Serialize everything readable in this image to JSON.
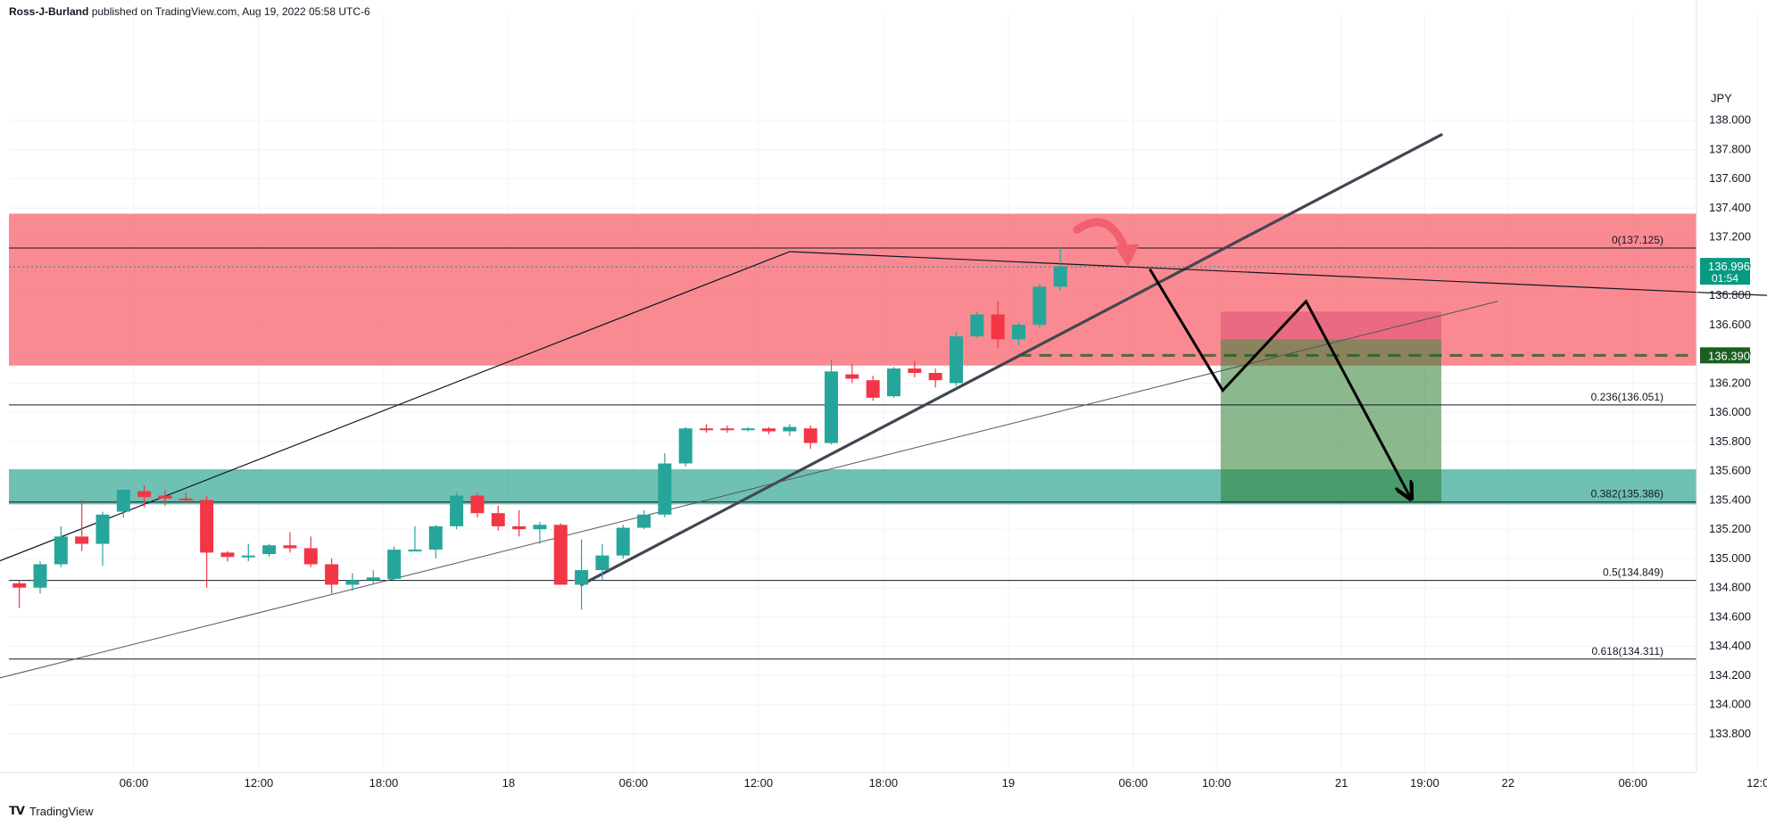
{
  "header": {
    "author": "Ross-J-Burland",
    "published_text": "published on TradingView.com, Aug 19, 2022 05:58 UTC-6"
  },
  "footer": {
    "brand": "TradingView",
    "logo_glyph": "𝗧𝗩"
  },
  "chart_data": {
    "type": "candlestick",
    "currency_label": "JPY",
    "y_ticks": [
      138.0,
      137.8,
      137.6,
      137.4,
      137.2,
      137.0,
      136.8,
      136.6,
      136.4,
      136.2,
      136.0,
      135.8,
      135.6,
      135.4,
      135.2,
      135.0,
      134.8,
      134.6,
      134.4,
      134.2,
      134.0,
      133.8
    ],
    "y_tick_labels": [
      "138.000",
      "137.800",
      "137.600",
      "137.400",
      "137.200",
      "137.000",
      "136.800",
      "136.600",
      "136.400",
      "136.200",
      "136.000",
      "135.800",
      "135.600",
      "135.400",
      "135.200",
      "135.000",
      "134.800",
      "134.600",
      "134.400",
      "134.200",
      "134.000",
      "133.800"
    ],
    "x_tick_labels": [
      {
        "label": "06:00",
        "hour": 6
      },
      {
        "label": "12:00",
        "hour": 12
      },
      {
        "label": "18:00",
        "hour": 18
      },
      {
        "label": "18",
        "hour": 24
      },
      {
        "label": "06:00",
        "hour": 30
      },
      {
        "label": "12:00",
        "hour": 36
      },
      {
        "label": "18:00",
        "hour": 42
      },
      {
        "label": "19",
        "hour": 48
      },
      {
        "label": "06:00",
        "hour": 54
      },
      {
        "label": "10:00",
        "hour": 58
      },
      {
        "label": "21",
        "hour": 64
      },
      {
        "label": "19:00",
        "hour": 68
      },
      {
        "label": "22",
        "hour": 72
      },
      {
        "label": "06:00",
        "hour": 78
      },
      {
        "label": "12:0",
        "hour": 84
      }
    ],
    "candles": [
      {
        "t": 0.5,
        "o": 134.83,
        "h": 134.85,
        "l": 134.66,
        "c": 134.8
      },
      {
        "t": 1.5,
        "o": 134.8,
        "h": 134.98,
        "l": 134.76,
        "c": 134.96
      },
      {
        "t": 2.5,
        "o": 134.96,
        "h": 135.22,
        "l": 134.94,
        "c": 135.15
      },
      {
        "t": 3.5,
        "o": 135.15,
        "h": 135.4,
        "l": 135.05,
        "c": 135.1
      },
      {
        "t": 4.5,
        "o": 135.1,
        "h": 135.32,
        "l": 134.95,
        "c": 135.3
      },
      {
        "t": 5.5,
        "o": 135.32,
        "h": 135.47,
        "l": 135.28,
        "c": 135.47
      },
      {
        "t": 6.5,
        "o": 135.46,
        "h": 135.5,
        "l": 135.35,
        "c": 135.42
      },
      {
        "t": 7.5,
        "o": 135.43,
        "h": 135.47,
        "l": 135.36,
        "c": 135.41
      },
      {
        "t": 8.5,
        "o": 135.41,
        "h": 135.45,
        "l": 135.38,
        "c": 135.4
      },
      {
        "t": 9.5,
        "o": 135.4,
        "h": 135.43,
        "l": 134.8,
        "c": 135.04
      },
      {
        "t": 10.5,
        "o": 135.04,
        "h": 135.05,
        "l": 134.98,
        "c": 135.01
      },
      {
        "t": 11.5,
        "o": 135.02,
        "h": 135.1,
        "l": 134.98,
        "c": 135.02
      },
      {
        "t": 12.5,
        "o": 135.03,
        "h": 135.1,
        "l": 135.01,
        "c": 135.09
      },
      {
        "t": 13.5,
        "o": 135.09,
        "h": 135.18,
        "l": 135.04,
        "c": 135.07
      },
      {
        "t": 14.5,
        "o": 135.07,
        "h": 135.15,
        "l": 134.94,
        "c": 134.96
      },
      {
        "t": 15.5,
        "o": 134.96,
        "h": 135.0,
        "l": 134.76,
        "c": 134.82
      },
      {
        "t": 16.5,
        "o": 134.82,
        "h": 134.9,
        "l": 134.78,
        "c": 134.85
      },
      {
        "t": 17.5,
        "o": 134.85,
        "h": 134.92,
        "l": 134.83,
        "c": 134.87
      },
      {
        "t": 18.5,
        "o": 134.86,
        "h": 135.08,
        "l": 134.85,
        "c": 135.06
      },
      {
        "t": 19.5,
        "o": 135.06,
        "h": 135.22,
        "l": 135.05,
        "c": 135.06
      },
      {
        "t": 20.5,
        "o": 135.06,
        "h": 135.23,
        "l": 135.0,
        "c": 135.22
      },
      {
        "t": 21.5,
        "o": 135.22,
        "h": 135.45,
        "l": 135.2,
        "c": 135.43
      },
      {
        "t": 22.5,
        "o": 135.43,
        "h": 135.45,
        "l": 135.28,
        "c": 135.31
      },
      {
        "t": 23.5,
        "o": 135.31,
        "h": 135.36,
        "l": 135.19,
        "c": 135.22
      },
      {
        "t": 24.5,
        "o": 135.22,
        "h": 135.33,
        "l": 135.15,
        "c": 135.2
      },
      {
        "t": 25.5,
        "o": 135.2,
        "h": 135.25,
        "l": 135.1,
        "c": 135.23
      },
      {
        "t": 26.5,
        "o": 135.23,
        "h": 135.24,
        "l": 134.82,
        "c": 134.82
      },
      {
        "t": 27.5,
        "o": 134.82,
        "h": 135.13,
        "l": 134.65,
        "c": 134.92
      },
      {
        "t": 28.5,
        "o": 134.92,
        "h": 135.1,
        "l": 134.85,
        "c": 135.02
      },
      {
        "t": 29.5,
        "o": 135.02,
        "h": 135.23,
        "l": 135.0,
        "c": 135.21
      },
      {
        "t": 30.5,
        "o": 135.21,
        "h": 135.33,
        "l": 135.2,
        "c": 135.3
      },
      {
        "t": 31.5,
        "o": 135.3,
        "h": 135.72,
        "l": 135.28,
        "c": 135.65
      },
      {
        "t": 32.5,
        "o": 135.65,
        "h": 135.9,
        "l": 135.63,
        "c": 135.89
      },
      {
        "t": 33.5,
        "o": 135.89,
        "h": 135.92,
        "l": 135.86,
        "c": 135.88
      },
      {
        "t": 34.5,
        "o": 135.89,
        "h": 135.91,
        "l": 135.86,
        "c": 135.88
      },
      {
        "t": 35.5,
        "o": 135.88,
        "h": 135.9,
        "l": 135.87,
        "c": 135.89
      },
      {
        "t": 36.5,
        "o": 135.89,
        "h": 135.9,
        "l": 135.85,
        "c": 135.87
      },
      {
        "t": 37.5,
        "o": 135.87,
        "h": 135.92,
        "l": 135.84,
        "c": 135.9
      },
      {
        "t": 38.5,
        "o": 135.89,
        "h": 135.91,
        "l": 135.75,
        "c": 135.79
      },
      {
        "t": 39.5,
        "o": 135.79,
        "h": 136.36,
        "l": 135.78,
        "c": 136.28
      },
      {
        "t": 40.5,
        "o": 136.26,
        "h": 136.33,
        "l": 136.2,
        "c": 136.23
      },
      {
        "t": 41.5,
        "o": 136.22,
        "h": 136.25,
        "l": 136.08,
        "c": 136.1
      },
      {
        "t": 42.5,
        "o": 136.11,
        "h": 136.31,
        "l": 136.1,
        "c": 136.3
      },
      {
        "t": 43.5,
        "o": 136.3,
        "h": 136.35,
        "l": 136.24,
        "c": 136.27
      },
      {
        "t": 44.5,
        "o": 136.27,
        "h": 136.3,
        "l": 136.17,
        "c": 136.22
      },
      {
        "t": 45.5,
        "o": 136.2,
        "h": 136.55,
        "l": 136.18,
        "c": 136.52
      },
      {
        "t": 46.5,
        "o": 136.52,
        "h": 136.69,
        "l": 136.51,
        "c": 136.67
      },
      {
        "t": 47.5,
        "o": 136.67,
        "h": 136.76,
        "l": 136.44,
        "c": 136.5
      },
      {
        "t": 48.5,
        "o": 136.5,
        "h": 136.62,
        "l": 136.46,
        "c": 136.6
      },
      {
        "t": 49.5,
        "o": 136.6,
        "h": 136.88,
        "l": 136.58,
        "c": 136.86
      },
      {
        "t": 50.5,
        "o": 136.86,
        "h": 137.13,
        "l": 136.83,
        "c": 137.0
      }
    ],
    "last_price": {
      "value": 136.996,
      "label": "136.996",
      "countdown": "01:54"
    },
    "entry_level": {
      "value": 136.39,
      "label": "136.390"
    },
    "fib_levels": [
      {
        "ratio_label": "0(137.125)",
        "value": 137.125
      },
      {
        "ratio_label": "0.236(136.051)",
        "value": 136.051
      },
      {
        "ratio_label": "0.382(135.386)",
        "value": 135.386
      },
      {
        "ratio_label": "0.5(134.849)",
        "value": 134.849
      },
      {
        "ratio_label": "0.618(134.311)",
        "value": 134.311
      }
    ],
    "zones": [
      {
        "name": "resistance",
        "from": 136.32,
        "to": 137.36,
        "color": "#f7525f",
        "opacity": 0.68
      },
      {
        "name": "support",
        "from": 135.37,
        "to": 135.61,
        "color": "#22a08a",
        "opacity": 0.65
      }
    ],
    "short_position": {
      "t_start": 58.2,
      "t_end": 68.8,
      "entry": 136.5,
      "stop": 136.69,
      "target": 135.38
    },
    "trendlines": [
      {
        "name": "major-uptrend",
        "t1": 27.5,
        "p1": 134.82,
        "t2": 68.8,
        "p2": 137.9,
        "width": 3.2,
        "color": "#434651"
      },
      {
        "name": "outer-channel-upper",
        "t1": -0.5,
        "p1": 134.98,
        "t2": 37.5,
        "p2": 137.1,
        "width": 1.2,
        "color": "#131722"
      },
      {
        "name": "descending-top",
        "t1": 37.5,
        "p1": 137.1,
        "t2": 84.5,
        "p2": 136.8,
        "width": 1.2,
        "color": "#131722"
      },
      {
        "name": "lower-channel",
        "t1": -0.5,
        "p1": 134.18,
        "t2": 71.5,
        "p2": 136.76,
        "width": 1.0,
        "color": "#555555"
      }
    ],
    "projection_path": [
      [
        54.8,
        136.98
      ],
      [
        58.3,
        136.15
      ],
      [
        62.3,
        136.76
      ],
      [
        67.3,
        135.42
      ]
    ],
    "colors": {
      "up": "#26a69a",
      "down": "#f23645",
      "grid": "#f0f3fa",
      "axis_text": "#131722",
      "entry_label_bg": "#1b5e20",
      "last_label_bg": "#089981"
    }
  }
}
